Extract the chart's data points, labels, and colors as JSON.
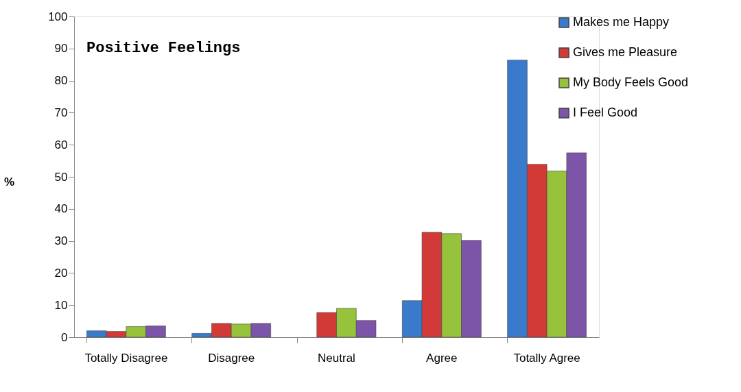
{
  "chart_data": {
    "type": "bar",
    "title": "Positive Feelings",
    "ylabel": "%",
    "categories": [
      "Totally Disagree",
      "Disagree",
      "Neutral",
      "Agree",
      "Totally Agree"
    ],
    "series": [
      {
        "name": "Makes me Happy",
        "color": "#3a7acc",
        "values": [
          2.0,
          1.2,
          null,
          11.4,
          86.4
        ]
      },
      {
        "name": "Gives me Pleasure",
        "color": "#d23a38",
        "values": [
          1.8,
          4.3,
          7.7,
          32.7,
          53.9
        ]
      },
      {
        "name": "My Body Feels Good",
        "color": "#96c23c",
        "values": [
          3.3,
          4.1,
          9.0,
          32.3,
          51.8
        ]
      },
      {
        "name": "I Feel Good",
        "color": "#7d55a8",
        "values": [
          3.5,
          4.3,
          5.2,
          30.2,
          57.5
        ]
      }
    ],
    "ylim": [
      0,
      100
    ],
    "yticks": [
      0,
      10,
      20,
      30,
      40,
      50,
      60,
      70,
      80,
      90,
      100
    ],
    "grid": false,
    "legend": "top right"
  }
}
